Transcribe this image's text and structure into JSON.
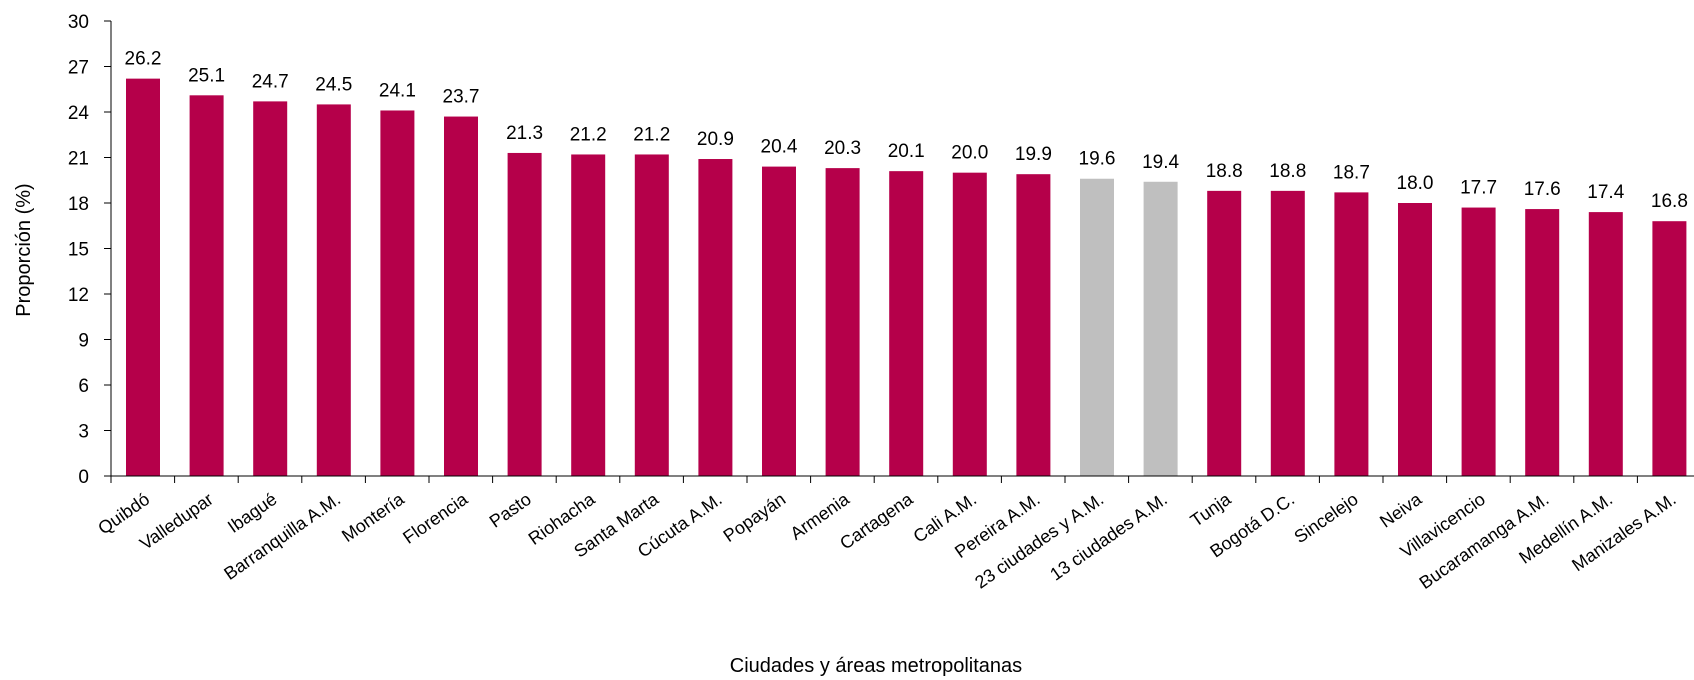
{
  "chart_data": {
    "type": "bar",
    "xlabel": "Ciudades y áreas metropolitanas",
    "ylabel": "Proporción (%)",
    "ylim": [
      0,
      30
    ],
    "yticks": [
      0,
      3,
      6,
      9,
      12,
      15,
      18,
      21,
      24,
      27,
      30
    ],
    "grid": false,
    "legend": "none",
    "colors": {
      "primary": "#B5004A",
      "aggregate": "#BFBFBF",
      "axis": "#000000"
    },
    "categories": [
      "Quibdó",
      "Valledupar",
      "Ibagué",
      "Barranquilla A.M.",
      "Montería",
      "Florencia",
      "Pasto",
      "Riohacha",
      "Santa Marta",
      "Cúcuta A.M.",
      "Popayán",
      "Armenia",
      "Cartagena",
      "Cali A.M.",
      "Pereira A.M.",
      "23 ciudades y A.M.",
      "13 ciudades A.M.",
      "Tunja",
      "Bogotá D.C.",
      "Sincelejo",
      "Neiva",
      "Villavicencio",
      "Bucaramanga A.M.",
      "Medellín A.M.",
      "Manizales A.M."
    ],
    "values": [
      26.2,
      25.1,
      24.7,
      24.5,
      24.1,
      23.7,
      21.3,
      21.2,
      21.2,
      20.9,
      20.4,
      20.3,
      20.1,
      20.0,
      19.9,
      19.6,
      19.4,
      18.8,
      18.8,
      18.7,
      18.0,
      17.7,
      17.6,
      17.4,
      16.8
    ],
    "value_labels": [
      "26.2",
      "25.1",
      "24.7",
      "24.5",
      "24.1",
      "23.7",
      "21.3",
      "21.2",
      "21.2",
      "20.9",
      "20.4",
      "20.3",
      "20.1",
      "20.0",
      "19.9",
      "19.6",
      "19.4",
      "18.8",
      "18.8",
      "18.7",
      "18.0",
      "17.7",
      "17.6",
      "17.4",
      "16.8"
    ],
    "highlighted": [
      "23 ciudades y A.M.",
      "13 ciudades A.M."
    ]
  }
}
